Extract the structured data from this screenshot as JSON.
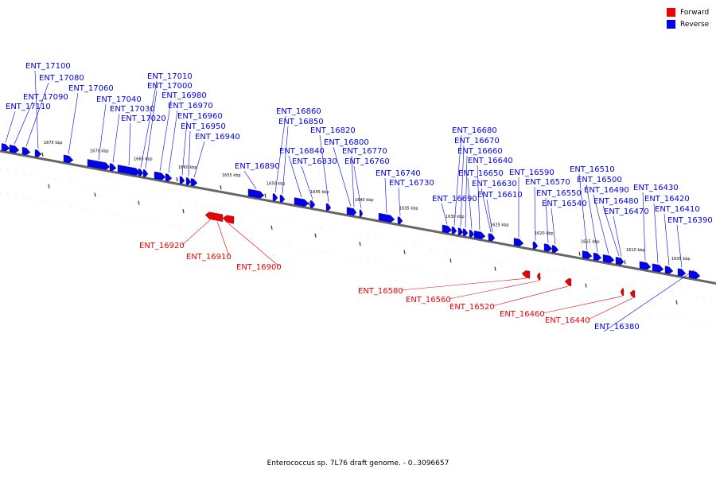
{
  "caption": "Enterococcus sp. 7L76 draft genome. - 0..3096657",
  "colors": {
    "forward": "#ee0000",
    "reverse": "#0000ee",
    "axis": "#666666"
  },
  "legend": [
    {
      "label": "Forward",
      "strand": "forward"
    },
    {
      "label": "Reverse",
      "strand": "reverse"
    }
  ],
  "ticks": [
    "1675 kbp",
    "1670 kbp",
    "1665 kbp",
    "1660 kbp",
    "1655 kbp",
    "1650 kbp",
    "1645 kbp",
    "1640 kbp",
    "1635 kbp",
    "1630 kbp",
    "1625 kbp",
    "1620 kbp",
    "1615 kbp",
    "1610 kbp",
    "1605 kbp"
  ],
  "forward_genes": [
    "ENT_16920",
    "ENT_16910",
    "ENT_16900",
    "ENT_16580",
    "ENT_16560",
    "ENT_16520",
    "ENT_16460",
    "ENT_16440"
  ],
  "reverse_genes": [
    "ENT_17110",
    "ENT_17090",
    "ENT_17080",
    "ENT_17100",
    "ENT_17060",
    "ENT_17040",
    "ENT_17030",
    "ENT_17020",
    "ENT_17010",
    "ENT_17000",
    "ENT_16980",
    "ENT_16970",
    "ENT_16960",
    "ENT_16950",
    "ENT_16940",
    "ENT_16890",
    "ENT_16860",
    "ENT_16850",
    "ENT_16840",
    "ENT_16830",
    "ENT_16820",
    "ENT_16800",
    "ENT_16770",
    "ENT_16760",
    "ENT_16740",
    "ENT_16730",
    "ENT_16690",
    "ENT_16680",
    "ENT_16670",
    "ENT_16660",
    "ENT_16650",
    "ENT_16640",
    "ENT_16630",
    "ENT_16610",
    "ENT_16590",
    "ENT_16570",
    "ENT_16550",
    "ENT_16540",
    "ENT_16510",
    "ENT_16500",
    "ENT_16490",
    "ENT_16480",
    "ENT_16470",
    "ENT_16430",
    "ENT_16420",
    "ENT_16410",
    "ENT_16390",
    "ENT_16380"
  ]
}
